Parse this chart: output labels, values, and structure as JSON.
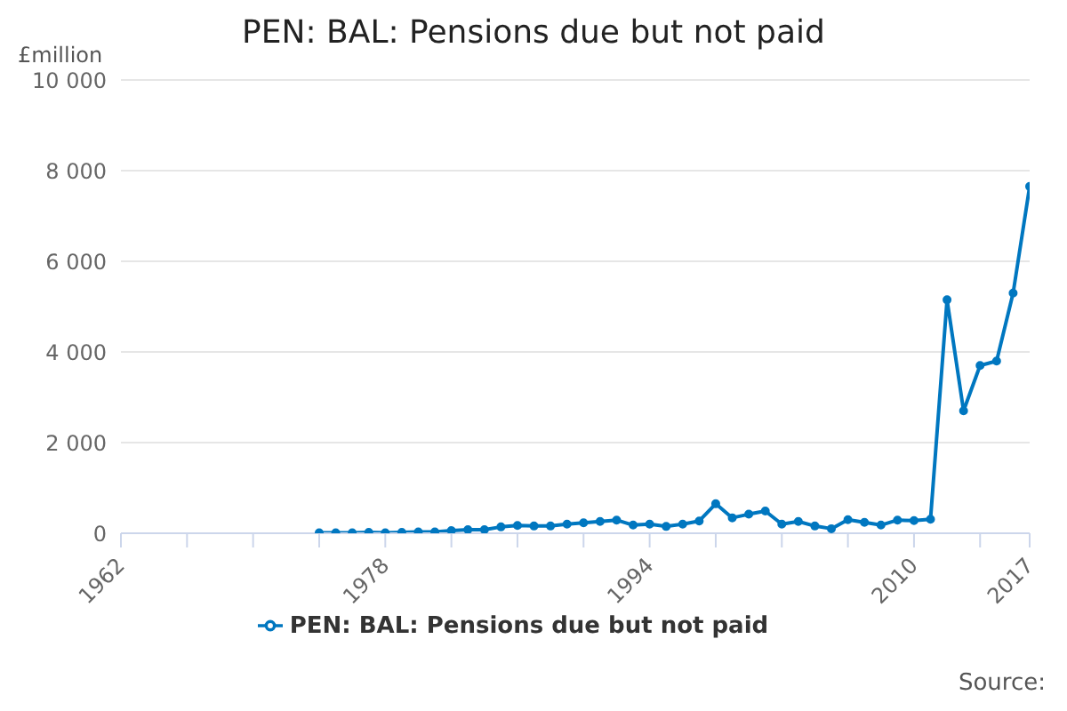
{
  "chart_data": {
    "type": "line",
    "title": "PEN: BAL: Pensions due but not paid",
    "ylabel": "£million",
    "annotations": [
      "Source:"
    ],
    "x": [
      1974,
      1975,
      1976,
      1977,
      1978,
      1979,
      1980,
      1981,
      1982,
      1983,
      1984,
      1985,
      1986,
      1987,
      1988,
      1989,
      1990,
      1991,
      1992,
      1993,
      1994,
      1995,
      1996,
      1997,
      1998,
      1999,
      2000,
      2001,
      2002,
      2003,
      2004,
      2005,
      2006,
      2007,
      2008,
      2009,
      2010,
      2011,
      2012,
      2013,
      2014,
      2015,
      2016,
      2017
    ],
    "series": [
      {
        "name": "PEN: BAL: Pensions due but not paid",
        "color": "#0077c0",
        "values": [
          10,
          10,
          10,
          20,
          10,
          20,
          30,
          30,
          60,
          80,
          80,
          140,
          170,
          160,
          160,
          200,
          230,
          260,
          290,
          180,
          200,
          150,
          200,
          270,
          650,
          340,
          420,
          490,
          200,
          260,
          160,
          100,
          300,
          240,
          180,
          290,
          280,
          310,
          5150,
          2700,
          3700,
          3800,
          5300,
          7650
        ]
      }
    ],
    "xlim": [
      1962,
      2017
    ],
    "xticks": [
      1962,
      {
        "value": 1966,
        "label": null
      },
      {
        "value": 1970,
        "label": null
      },
      {
        "value": 1974,
        "label": null
      },
      1978,
      {
        "value": 1982,
        "label": null
      },
      {
        "value": 1986,
        "label": null
      },
      {
        "value": 1990,
        "label": null
      },
      1994,
      {
        "value": 1998,
        "label": null
      },
      {
        "value": 2002,
        "label": null
      },
      {
        "value": 2006,
        "label": null
      },
      2010,
      {
        "value": 2014,
        "label": null
      },
      2017
    ],
    "ylim": [
      0,
      10000
    ],
    "yticks": [
      {
        "value": 0,
        "label": "0"
      },
      {
        "value": 2000,
        "label": "2 000"
      },
      {
        "value": 4000,
        "label": "4 000"
      },
      {
        "value": 6000,
        "label": "6 000"
      },
      {
        "value": 8000,
        "label": "8 000"
      },
      {
        "value": 10000,
        "label": "10 000"
      }
    ],
    "grid": "y",
    "legend": "bottom",
    "marker": "circle",
    "line_style": "solid"
  }
}
